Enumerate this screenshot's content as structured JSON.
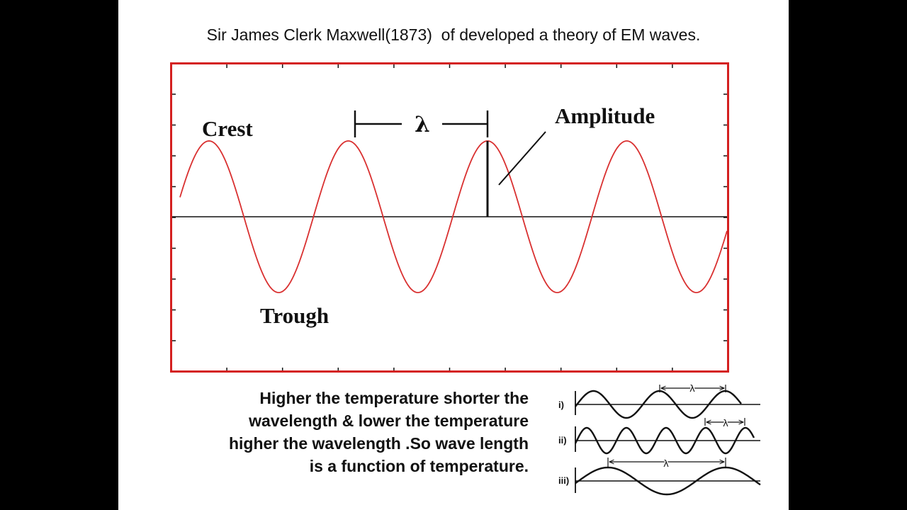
{
  "slide": {
    "title": "Sir James Clerk Maxwell(1873)  of developed a theory of EM waves."
  },
  "main_diagram": {
    "labels": {
      "crest": "Crest",
      "trough": "Trough",
      "amplitude": "Amplitude",
      "wavelength": "λ"
    },
    "wave_color": "#d93030",
    "frame_color": "#d42020",
    "cycles_per_frame": 4
  },
  "description": {
    "lines": [
      "Higher the temperature shorter the",
      "wavelength & lower the temperature",
      "higher the wavelength .So wave length",
      "is a function of temperature."
    ]
  },
  "comparison": {
    "rows": [
      {
        "label": "i)",
        "lambda": "λ"
      },
      {
        "label": "ii)",
        "lambda": "λ"
      },
      {
        "label": "iii)",
        "lambda": "λ"
      }
    ]
  }
}
